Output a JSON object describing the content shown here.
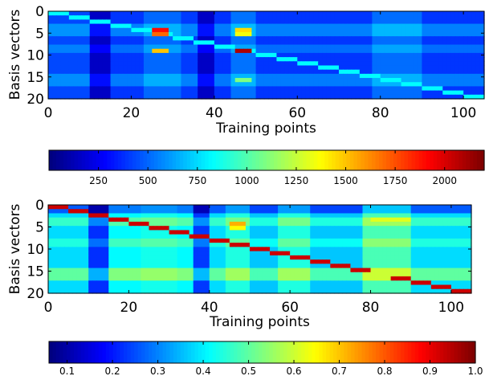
{
  "chart_data": [
    {
      "type": "heatmap",
      "colormap": "jet",
      "xlabel": "Training points",
      "ylabel": "Basis vectors",
      "xlim": [
        0,
        105
      ],
      "ylim": [
        20,
        0
      ],
      "x_ticks": [
        "0",
        "20",
        "40",
        "60",
        "80",
        "100"
      ],
      "y_ticks": [
        "0",
        "5",
        "10",
        "15",
        "20"
      ],
      "n_cols": 105,
      "n_rows": 21,
      "background_value": 380,
      "column_bands": [
        {
          "x": [
            0,
            10
          ],
          "delta": 50
        },
        {
          "x": [
            10,
            15
          ],
          "delta": -230
        },
        {
          "x": [
            15,
            23
          ],
          "delta": 10
        },
        {
          "x": [
            23,
            32
          ],
          "delta": 120
        },
        {
          "x": [
            32,
            36
          ],
          "delta": 20
        },
        {
          "x": [
            36,
            40
          ],
          "delta": -230
        },
        {
          "x": [
            40,
            44
          ],
          "delta": 0
        },
        {
          "x": [
            44,
            50
          ],
          "delta": 140
        },
        {
          "x": [
            50,
            78
          ],
          "delta": 10
        },
        {
          "x": [
            78,
            90
          ],
          "delta": 130
        },
        {
          "x": [
            90,
            105
          ],
          "delta": 10
        }
      ],
      "row_bands": [
        {
          "y": [
            3,
            5
          ],
          "delta": 160
        },
        {
          "y": [
            8,
            9
          ],
          "delta": 120
        },
        {
          "y": [
            15,
            17
          ],
          "delta": 150
        }
      ],
      "diagonal": {
        "value": 820,
        "points": [
          [
            0,
            0
          ],
          [
            5,
            1
          ],
          [
            10,
            2
          ],
          [
            15,
            3
          ],
          [
            20,
            4
          ],
          [
            25,
            5
          ],
          [
            30,
            6
          ],
          [
            35,
            7
          ],
          [
            40,
            8
          ],
          [
            45,
            9
          ],
          [
            50,
            10
          ],
          [
            55,
            11
          ],
          [
            60,
            12
          ],
          [
            65,
            13
          ],
          [
            70,
            14
          ],
          [
            75,
            15
          ],
          [
            80,
            16
          ],
          [
            85,
            17
          ],
          [
            90,
            18
          ],
          [
            95,
            19
          ],
          [
            100,
            20
          ]
        ]
      },
      "hotspots": [
        {
          "x": [
            25,
            29
          ],
          "y": 4,
          "value": 1900
        },
        {
          "x": [
            25,
            29
          ],
          "y": 5,
          "value": 1700
        },
        {
          "x": [
            25,
            29
          ],
          "y": 9,
          "value": 1500
        },
        {
          "x": [
            45,
            49
          ],
          "y": 4,
          "value": 1450
        },
        {
          "x": [
            45,
            49
          ],
          "y": 5,
          "value": 1350
        },
        {
          "x": [
            45,
            49
          ],
          "y": 9,
          "value": 2100
        },
        {
          "x": [
            45,
            49
          ],
          "y": 16,
          "value": 1100
        }
      ],
      "colorbar": {
        "range": [
          0,
          2200
        ],
        "ticks": [
          250,
          500,
          750,
          1000,
          1250,
          1500,
          1750,
          2000
        ],
        "tick_labels": [
          "250",
          "500",
          "750",
          "1000",
          "1250",
          "1500",
          "1750",
          "2000"
        ]
      }
    },
    {
      "type": "heatmap",
      "colormap": "jet",
      "xlabel": "Training points",
      "ylabel": "Basis vectors",
      "xlim": [
        0,
        105
      ],
      "ylim": [
        20,
        0
      ],
      "x_ticks": [
        "0",
        "20",
        "40",
        "60",
        "80",
        "100"
      ],
      "y_ticks": [
        "0",
        "5",
        "10",
        "15",
        "20"
      ],
      "n_cols": 105,
      "n_rows": 21,
      "background_value": 0.36,
      "column_bands": [
        {
          "x": [
            0,
            10
          ],
          "delta": 0.02
        },
        {
          "x": [
            10,
            15
          ],
          "delta": -0.14
        },
        {
          "x": [
            15,
            23
          ],
          "delta": 0.05
        },
        {
          "x": [
            23,
            32
          ],
          "delta": 0.07
        },
        {
          "x": [
            32,
            36
          ],
          "delta": 0.05
        },
        {
          "x": [
            36,
            40
          ],
          "delta": -0.13
        },
        {
          "x": [
            40,
            44
          ],
          "delta": 0.02
        },
        {
          "x": [
            44,
            50
          ],
          "delta": 0.08
        },
        {
          "x": [
            50,
            57
          ],
          "delta": 0.0
        },
        {
          "x": [
            57,
            65
          ],
          "delta": 0.08
        },
        {
          "x": [
            65,
            78
          ],
          "delta": 0.0
        },
        {
          "x": [
            78,
            90
          ],
          "delta": 0.12
        },
        {
          "x": [
            90,
            105
          ],
          "delta": 0.02
        }
      ],
      "row_bands": [
        {
          "y": [
            0,
            1
          ],
          "delta": -0.12
        },
        {
          "y": [
            3,
            4
          ],
          "delta": 0.08
        },
        {
          "y": [
            8,
            9
          ],
          "delta": 0.06
        },
        {
          "y": [
            15,
            17
          ],
          "delta": 0.12
        }
      ],
      "diagonal": {
        "value": 0.93,
        "points": [
          [
            0,
            0
          ],
          [
            5,
            1
          ],
          [
            10,
            2
          ],
          [
            15,
            3
          ],
          [
            20,
            4
          ],
          [
            25,
            5
          ],
          [
            30,
            6
          ],
          [
            35,
            7
          ],
          [
            40,
            8
          ],
          [
            45,
            9
          ],
          [
            50,
            10
          ],
          [
            55,
            11
          ],
          [
            60,
            12
          ],
          [
            65,
            13
          ],
          [
            70,
            14
          ],
          [
            75,
            15
          ],
          [
            80,
            16
          ],
          [
            85,
            17
          ],
          [
            90,
            18
          ],
          [
            95,
            19
          ],
          [
            100,
            20
          ]
        ]
      },
      "hotspots": [
        {
          "x": [
            45,
            49
          ],
          "y": 4,
          "value": 0.72
        },
        {
          "x": [
            45,
            49
          ],
          "y": 5,
          "value": 0.65
        },
        {
          "x": [
            80,
            90
          ],
          "y": 3,
          "value": 0.62
        },
        {
          "x": [
            80,
            90
          ],
          "y": 16,
          "value": 0.6
        }
      ],
      "colorbar": {
        "range": [
          0.06,
          1.0
        ],
        "ticks": [
          0.1,
          0.2,
          0.3,
          0.4,
          0.5,
          0.6,
          0.7,
          0.8,
          0.9,
          1.0
        ],
        "tick_labels": [
          "0.1",
          "0.2",
          "0.3",
          "0.4",
          "0.5",
          "0.6",
          "0.7",
          "0.8",
          "0.9",
          "1.0"
        ]
      }
    }
  ]
}
